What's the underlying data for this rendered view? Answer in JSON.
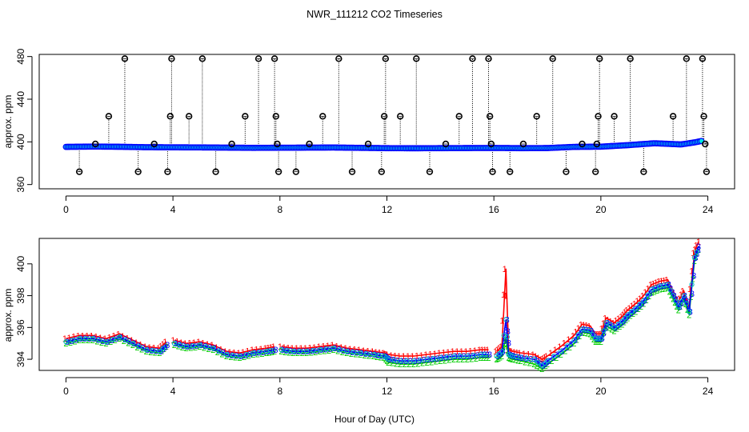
{
  "chart_data": [
    {
      "type": "scatter",
      "panel": "top",
      "title": "NWR_111212  CO2 Timeseries",
      "xlabel": "",
      "ylabel": "approx. ppm",
      "xlim": [
        -1.0,
        25.0
      ],
      "ylim": [
        356,
        482
      ],
      "x_ticks": [
        0,
        4,
        8,
        12,
        16,
        20,
        24
      ],
      "y_ticks": [
        360,
        400,
        440,
        480
      ],
      "baseline": {
        "x": [
          0,
          1,
          2,
          3,
          4,
          5,
          6,
          7,
          8,
          9,
          10,
          11,
          12,
          13,
          14,
          15,
          16,
          17,
          18,
          19,
          20,
          21,
          22,
          23,
          23.5,
          23.8
        ],
        "y": [
          395.3,
          395.6,
          395.4,
          395.0,
          394.9,
          394.8,
          394.6,
          394.4,
          394.5,
          394.6,
          394.7,
          394.4,
          394.1,
          394.0,
          394.1,
          394.2,
          394.3,
          394.1,
          394.2,
          395.3,
          395.5,
          396.9,
          398.7,
          397.6,
          399.5,
          401.0
        ]
      },
      "outliers": [
        {
          "x": 0.5,
          "y": 372
        },
        {
          "x": 1.1,
          "y": 398
        },
        {
          "x": 1.6,
          "y": 424
        },
        {
          "x": 2.2,
          "y": 478
        },
        {
          "x": 2.7,
          "y": 372
        },
        {
          "x": 3.3,
          "y": 398
        },
        {
          "x": 3.8,
          "y": 372
        },
        {
          "x": 3.9,
          "y": 424
        },
        {
          "x": 3.95,
          "y": 478
        },
        {
          "x": 4.6,
          "y": 424
        },
        {
          "x": 5.1,
          "y": 478
        },
        {
          "x": 5.6,
          "y": 372
        },
        {
          "x": 6.2,
          "y": 398
        },
        {
          "x": 6.7,
          "y": 424
        },
        {
          "x": 7.2,
          "y": 478
        },
        {
          "x": 7.8,
          "y": 478
        },
        {
          "x": 7.85,
          "y": 424
        },
        {
          "x": 7.9,
          "y": 398
        },
        {
          "x": 7.95,
          "y": 372
        },
        {
          "x": 8.6,
          "y": 372
        },
        {
          "x": 9.1,
          "y": 398
        },
        {
          "x": 9.6,
          "y": 424
        },
        {
          "x": 10.2,
          "y": 478
        },
        {
          "x": 10.7,
          "y": 372
        },
        {
          "x": 11.3,
          "y": 398
        },
        {
          "x": 11.8,
          "y": 372
        },
        {
          "x": 11.9,
          "y": 424
        },
        {
          "x": 11.95,
          "y": 478
        },
        {
          "x": 12.5,
          "y": 424
        },
        {
          "x": 13.1,
          "y": 478
        },
        {
          "x": 13.6,
          "y": 372
        },
        {
          "x": 14.2,
          "y": 398
        },
        {
          "x": 14.7,
          "y": 424
        },
        {
          "x": 15.2,
          "y": 478
        },
        {
          "x": 15.8,
          "y": 478
        },
        {
          "x": 15.85,
          "y": 424
        },
        {
          "x": 15.9,
          "y": 398
        },
        {
          "x": 15.95,
          "y": 372
        },
        {
          "x": 16.6,
          "y": 372
        },
        {
          "x": 17.1,
          "y": 398
        },
        {
          "x": 17.6,
          "y": 424
        },
        {
          "x": 18.2,
          "y": 478
        },
        {
          "x": 18.7,
          "y": 372
        },
        {
          "x": 19.3,
          "y": 398
        },
        {
          "x": 19.8,
          "y": 372
        },
        {
          "x": 19.85,
          "y": 398
        },
        {
          "x": 19.9,
          "y": 424
        },
        {
          "x": 19.95,
          "y": 478
        },
        {
          "x": 20.5,
          "y": 424
        },
        {
          "x": 21.1,
          "y": 478
        },
        {
          "x": 21.6,
          "y": 372
        },
        {
          "x": 22.7,
          "y": 424
        },
        {
          "x": 23.2,
          "y": 478
        },
        {
          "x": 23.8,
          "y": 478
        },
        {
          "x": 23.85,
          "y": 424
        },
        {
          "x": 23.9,
          "y": 398
        },
        {
          "x": 23.95,
          "y": 372
        }
      ],
      "series_colors": {
        "baseline": "#0000ff",
        "fill": "#00e5e5",
        "outlier": "#000000"
      }
    },
    {
      "type": "line",
      "panel": "bottom",
      "xlabel": "Hour of Day (UTC)",
      "ylabel": "approx. ppm",
      "xlim": [
        -1.0,
        25.0
      ],
      "ylim": [
        393.3,
        401.6
      ],
      "x_ticks": [
        0,
        4,
        8,
        12,
        16,
        20,
        24
      ],
      "y_ticks": [
        394,
        396,
        398,
        400
      ],
      "gaps_after": [
        3.75,
        7.8,
        15.8
      ],
      "x": [
        0,
        0.5,
        1,
        1.5,
        2,
        2.5,
        3,
        3.5,
        3.75,
        4.05,
        4.5,
        5,
        5.5,
        6,
        6.5,
        7,
        7.5,
        7.8,
        8.05,
        8.5,
        9,
        9.5,
        10,
        10.5,
        11,
        11.5,
        11.9,
        12.05,
        12.5,
        13,
        13.5,
        14,
        14.5,
        15,
        15.5,
        15.8,
        16.1,
        16.3,
        16.45,
        16.55,
        16.7,
        17,
        17.5,
        17.8,
        18,
        18.5,
        19,
        19.3,
        19.6,
        19.8,
        20,
        20.2,
        20.5,
        20.8,
        21,
        21.3,
        21.6,
        21.9,
        22.2,
        22.5,
        22.7,
        22.9,
        23.1,
        23.3,
        23.5,
        23.65
      ],
      "series": [
        {
          "name": "1",
          "color": "#ff0000",
          "values": [
            395.3,
            395.5,
            395.5,
            395.3,
            395.6,
            395.2,
            394.8,
            394.7,
            395.1,
            395.2,
            395.0,
            395.1,
            394.9,
            394.5,
            394.4,
            394.6,
            394.7,
            394.8,
            394.8,
            394.7,
            394.7,
            394.8,
            394.9,
            394.7,
            394.6,
            394.5,
            394.4,
            394.3,
            394.2,
            394.2,
            394.3,
            394.4,
            394.5,
            394.5,
            394.6,
            394.6,
            394.5,
            394.8,
            399.7,
            394.6,
            394.5,
            394.4,
            394.3,
            394.0,
            394.2,
            394.8,
            395.5,
            396.2,
            396.1,
            395.6,
            395.6,
            396.6,
            396.3,
            396.7,
            397.1,
            397.5,
            398.0,
            398.7,
            398.9,
            399.0,
            398.3,
            397.6,
            398.3,
            397.3,
            400.7,
            401.4
          ]
        },
        {
          "name": "2",
          "color": "#00cc00",
          "values": [
            395.0,
            395.2,
            395.2,
            395.0,
            395.3,
            394.9,
            394.5,
            394.4,
            394.8,
            394.9,
            394.7,
            394.8,
            394.6,
            394.2,
            394.1,
            394.3,
            394.4,
            394.5,
            394.5,
            394.4,
            394.4,
            394.5,
            394.6,
            394.4,
            394.3,
            394.2,
            394.1,
            393.8,
            393.7,
            393.7,
            393.8,
            393.9,
            394.0,
            394.0,
            394.1,
            394.1,
            394.0,
            394.2,
            395.4,
            394.1,
            394.0,
            393.9,
            393.7,
            393.4,
            393.7,
            394.3,
            395.0,
            395.7,
            395.6,
            395.1,
            395.1,
            396.1,
            395.8,
            396.2,
            396.6,
            397.0,
            397.5,
            398.2,
            398.4,
            398.5,
            397.8,
            397.1,
            397.8,
            396.8,
            400.2,
            400.9
          ]
        },
        {
          "name": "3",
          "color": "#0000ff",
          "values": [
            395.1,
            395.3,
            395.3,
            395.1,
            395.4,
            395.0,
            394.6,
            394.5,
            394.9,
            395.0,
            394.8,
            394.9,
            394.7,
            394.3,
            394.2,
            394.4,
            394.5,
            394.6,
            394.6,
            394.5,
            394.5,
            394.6,
            394.7,
            394.5,
            394.4,
            394.3,
            394.2,
            394.0,
            393.9,
            393.9,
            394.0,
            394.1,
            394.2,
            394.2,
            394.3,
            394.3,
            394.2,
            394.5,
            396.5,
            394.3,
            394.2,
            394.1,
            394.0,
            393.6,
            393.9,
            394.5,
            395.2,
            395.9,
            395.8,
            395.3,
            395.3,
            396.3,
            396.0,
            396.4,
            396.8,
            397.2,
            397.7,
            398.4,
            398.6,
            398.7,
            398.0,
            397.3,
            398.0,
            397.0,
            400.4,
            401.1
          ]
        }
      ]
    }
  ]
}
